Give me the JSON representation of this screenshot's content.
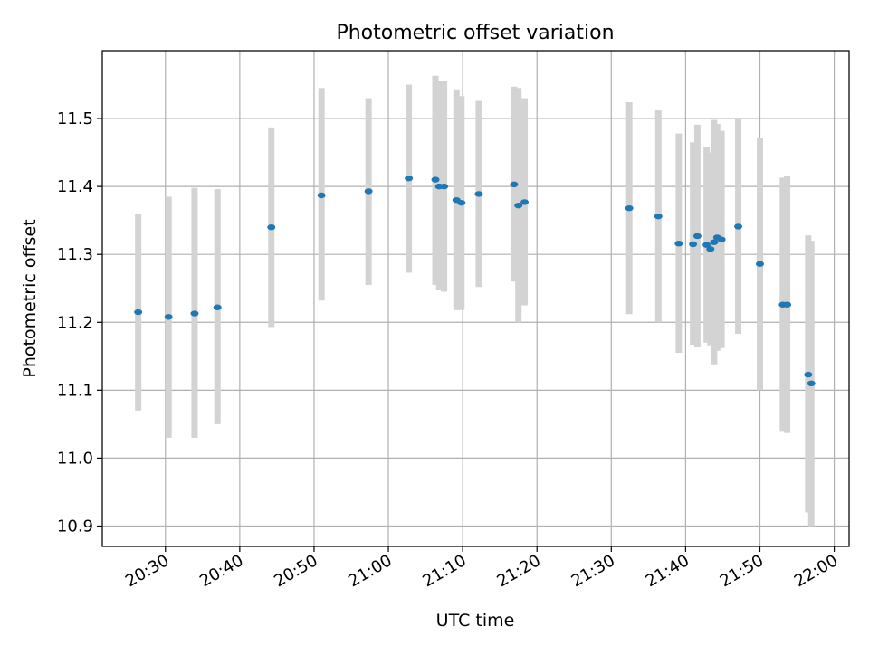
{
  "chart_data": {
    "type": "scatter",
    "title": "Photometric offset variation",
    "xlabel": "UTC time",
    "ylabel": "Photometric offset",
    "x_ticks": [
      "20:30",
      "20:40",
      "20:50",
      "21:00",
      "21:10",
      "21:20",
      "21:30",
      "21:40",
      "21:50",
      "22:00"
    ],
    "y_ticks": [
      "10.9",
      "11.0",
      "11.1",
      "11.2",
      "11.3",
      "11.4",
      "11.5"
    ],
    "xlim": [
      "20:21:30",
      "22:02:00"
    ],
    "ylim": [
      10.87,
      11.6
    ],
    "grid": true,
    "colors": {
      "point": "#1f77b4",
      "errorbar": "#d3d3d3",
      "grid": "#b0b0b0"
    },
    "points": [
      {
        "t": "20:26:20",
        "y": 11.215,
        "lo": 11.07,
        "hi": 11.36
      },
      {
        "t": "20:30:25",
        "y": 11.208,
        "lo": 11.03,
        "hi": 11.385
      },
      {
        "t": "20:33:55",
        "y": 11.213,
        "lo": 11.03,
        "hi": 11.398
      },
      {
        "t": "20:37:00",
        "y": 11.222,
        "lo": 11.05,
        "hi": 11.396
      },
      {
        "t": "20:44:15",
        "y": 11.34,
        "lo": 11.193,
        "hi": 11.487
      },
      {
        "t": "20:51:00",
        "y": 11.387,
        "lo": 11.232,
        "hi": 11.545
      },
      {
        "t": "20:57:20",
        "y": 11.393,
        "lo": 11.255,
        "hi": 11.53
      },
      {
        "t": "21:02:45",
        "y": 11.412,
        "lo": 11.273,
        "hi": 11.55
      },
      {
        "t": "21:06:20",
        "y": 11.41,
        "lo": 11.255,
        "hi": 11.563
      },
      {
        "t": "21:06:50",
        "y": 11.4,
        "lo": 11.248,
        "hi": 11.555
      },
      {
        "t": "21:07:30",
        "y": 11.4,
        "lo": 11.245,
        "hi": 11.555
      },
      {
        "t": "21:09:10",
        "y": 11.38,
        "lo": 11.218,
        "hi": 11.543
      },
      {
        "t": "21:09:50",
        "y": 11.376,
        "lo": 11.218,
        "hi": 11.533
      },
      {
        "t": "21:12:10",
        "y": 11.389,
        "lo": 11.252,
        "hi": 11.526
      },
      {
        "t": "21:16:55",
        "y": 11.403,
        "lo": 11.26,
        "hi": 11.547
      },
      {
        "t": "21:17:30",
        "y": 11.372,
        "lo": 11.2,
        "hi": 11.545
      },
      {
        "t": "21:18:20",
        "y": 11.377,
        "lo": 11.225,
        "hi": 11.53
      },
      {
        "t": "21:32:25",
        "y": 11.368,
        "lo": 11.212,
        "hi": 11.524
      },
      {
        "t": "21:36:20",
        "y": 11.356,
        "lo": 11.2,
        "hi": 11.512
      },
      {
        "t": "21:39:05",
        "y": 11.316,
        "lo": 11.155,
        "hi": 11.478
      },
      {
        "t": "21:41:00",
        "y": 11.315,
        "lo": 11.167,
        "hi": 11.465
      },
      {
        "t": "21:41:35",
        "y": 11.327,
        "lo": 11.163,
        "hi": 11.491
      },
      {
        "t": "21:42:50",
        "y": 11.314,
        "lo": 11.17,
        "hi": 11.458
      },
      {
        "t": "21:43:20",
        "y": 11.308,
        "lo": 11.166,
        "hi": 11.45
      },
      {
        "t": "21:43:50",
        "y": 11.318,
        "lo": 11.138,
        "hi": 11.498
      },
      {
        "t": "21:44:15",
        "y": 11.325,
        "lo": 11.158,
        "hi": 11.492
      },
      {
        "t": "21:44:50",
        "y": 11.322,
        "lo": 11.162,
        "hi": 11.482
      },
      {
        "t": "21:47:05",
        "y": 11.341,
        "lo": 11.183,
        "hi": 11.5
      },
      {
        "t": "21:50:00",
        "y": 11.286,
        "lo": 11.1,
        "hi": 11.472
      },
      {
        "t": "21:53:05",
        "y": 11.226,
        "lo": 11.04,
        "hi": 11.413
      },
      {
        "t": "21:53:40",
        "y": 11.226,
        "lo": 11.037,
        "hi": 11.415
      },
      {
        "t": "21:56:30",
        "y": 11.123,
        "lo": 10.92,
        "hi": 11.328
      },
      {
        "t": "21:56:55",
        "y": 11.11,
        "lo": 10.9,
        "hi": 11.32
      }
    ]
  }
}
